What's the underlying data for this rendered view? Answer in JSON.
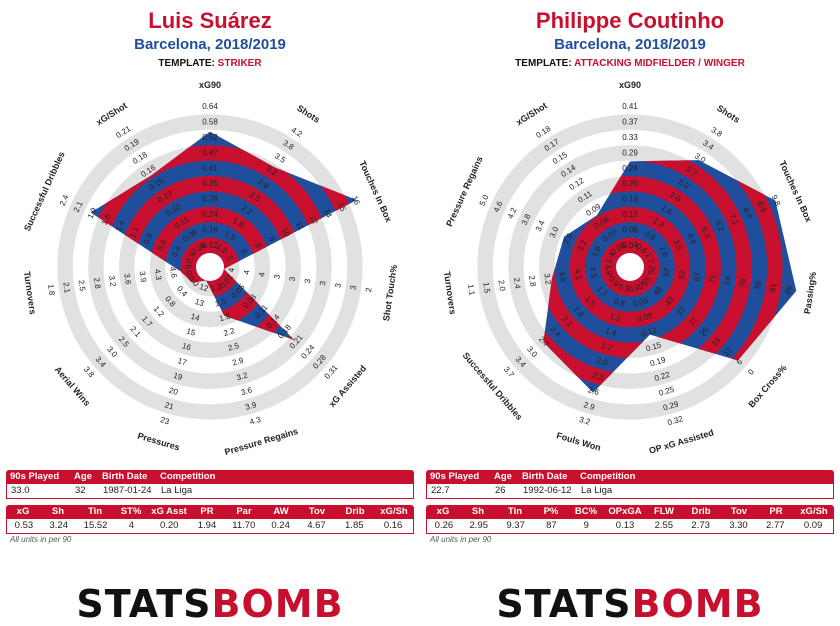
{
  "panels": [
    {
      "name": "Luis Suárez",
      "team": "Barcelona, 2018/2019",
      "template_label": "TEMPLATE:",
      "template_value": "STRIKER",
      "info_headers": [
        "90s Played",
        "Age",
        "Birth Date",
        "Competition"
      ],
      "info_values": [
        "33.0",
        "32",
        "1987-01-24",
        "La Liga"
      ],
      "stat_headers": [
        "xG",
        "Sh",
        "Tin",
        "ST%",
        "xG Asst",
        "PR",
        "Par",
        "AW",
        "Tov",
        "Drib",
        "xG/Sh"
      ],
      "stat_values": [
        "0.53",
        "3.24",
        "15.52",
        "4",
        "0.20",
        "1.94",
        "11.70",
        "0.24",
        "4.67",
        "1.85",
        "0.16"
      ],
      "units_note": "All units in per 90"
    },
    {
      "name": "Philippe Coutinho",
      "team": "Barcelona, 2018/2019",
      "template_label": "TEMPLATE:",
      "template_value": "ATTACKING MIDFIELDER / WINGER",
      "info_headers": [
        "90s Played",
        "Age",
        "Birth Date",
        "Competition"
      ],
      "info_values": [
        "22.7",
        "26",
        "1992-06-12",
        "La Liga"
      ],
      "stat_headers": [
        "xG",
        "Sh",
        "Tin",
        "P%",
        "BC%",
        "OPxGA",
        "FLW",
        "Drib",
        "Tov",
        "PR",
        "xG/Sh"
      ],
      "stat_values": [
        "0.26",
        "2.95",
        "9.37",
        "87",
        "9",
        "0.13",
        "2.55",
        "2.73",
        "3.30",
        "2.77",
        "0.09"
      ],
      "units_note": "All units in per 90"
    }
  ],
  "logo": {
    "part1": "STATS",
    "part2": "BOMB"
  },
  "colors": {
    "red": "#c8102e",
    "blue": "#1f4e9c",
    "ring": "#e1e1e1"
  },
  "chart_data": [
    {
      "type": "radar",
      "title": "Luis Suárez",
      "axes": [
        "xG90",
        "Shots",
        "Touches In Box",
        "Shot Touch%",
        "xG Assisted",
        "Pressure Regains",
        "Pressures",
        "Aerial Wins",
        "Turnovers",
        "Successful Dribbles",
        "xG/Shot"
      ],
      "values": [
        0.53,
        3.24,
        15.52,
        4,
        0.2,
        1.94,
        11.7,
        0.24,
        4.67,
        1.85,
        0.16
      ],
      "outer": [
        0.64,
        4.2,
        16,
        2,
        0.31,
        4.3,
        23,
        3.8,
        1.8,
        2.4,
        0.21
      ],
      "ticks": [
        [
          "0.64",
          "0.58",
          "0.52",
          "0.47",
          "0.41",
          "0.35",
          "0.29",
          "0.24",
          "0.18",
          "0.12"
        ],
        [
          "4.2",
          "3.8",
          "3.5",
          "3.2",
          "2.8",
          "2.5",
          "2.2",
          "1.8",
          "1.5",
          "1.2"
        ],
        [
          "16",
          "15",
          "14",
          "12",
          "11",
          "10",
          "9",
          "8",
          "6",
          "5"
        ],
        [
          "2",
          "3",
          "3",
          "3",
          "3",
          "3",
          "3",
          "4",
          "4",
          "4"
        ],
        [
          "0.31",
          "0.28",
          "0.24",
          "0.21",
          "0.18",
          "0.14",
          "0.11",
          "0.08",
          "0.05",
          "0.01"
        ],
        [
          "4.3",
          "3.9",
          "3.6",
          "3.2",
          "2.9",
          "2.5",
          "2.2",
          "1.8",
          "1.5",
          "1.2"
        ],
        [
          "23",
          "21",
          "20",
          "19",
          "17",
          "16",
          "15",
          "14",
          "13",
          "12"
        ],
        [
          "3.8",
          "3.4",
          "3.0",
          "2.5",
          "2.1",
          "1.7",
          "1.2",
          "0.8",
          "0.4",
          "0.0"
        ],
        [
          "1.8",
          "2.1",
          "2.5",
          "2.8",
          "3.2",
          "3.6",
          "3.9",
          "4.3",
          "4.6",
          "5.0"
        ],
        [
          "2.4",
          "2.1",
          "1.9",
          "1.6",
          "1.4",
          "1.1",
          "0.9",
          "0.6",
          "0.4",
          "0.1"
        ],
        [
          "0.21",
          "0.19",
          "0.18",
          "0.16",
          "0.15",
          "0.13",
          "0.12",
          "0.11",
          "0.09",
          "0.08"
        ]
      ]
    },
    {
      "type": "radar",
      "title": "Philippe Coutinho",
      "axes": [
        "xG90",
        "Shots",
        "Touches In Box",
        "Passing%",
        "Box Cross%",
        "OP xG Assisted",
        "Fouls Won",
        "Successful Dribbles",
        "Turnovers",
        "Pressure Regains",
        "xG/Shot"
      ],
      "values": [
        0.26,
        2.95,
        9.37,
        87,
        9,
        0.13,
        2.55,
        2.73,
        3.3,
        2.77,
        0.09
      ],
      "outer": [
        0.41,
        3.8,
        9.8,
        85,
        0,
        0.32,
        3.2,
        3.7,
        1.1,
        5.0,
        0.18
      ],
      "ticks": [
        [
          "0.41",
          "0.37",
          "0.33",
          "0.29",
          "0.24",
          "0.20",
          "0.16",
          "0.12",
          "0.08",
          "0.04"
        ],
        [
          "3.8",
          "3.4",
          "3.0",
          "2.7",
          "2.3",
          "2.0",
          "1.6",
          "1.3",
          "0.9",
          "0.6"
        ],
        [
          "9.8",
          "8.9",
          "8.0",
          "7.1",
          "6.2",
          "5.3",
          "4.4",
          "3.5",
          "2.6",
          "1.7"
        ],
        [
          "85",
          "81",
          "78",
          "76",
          "74",
          "71",
          "67",
          "62",
          "57",
          "52"
        ],
        [
          "0",
          "6",
          "12",
          "18",
          "25",
          "31",
          "37",
          "43",
          "49",
          "55"
        ],
        [
          "0.32",
          "0.29",
          "0.25",
          "0.22",
          "0.19",
          "0.15",
          "0.12",
          "0.09",
          "0.05",
          "0.02"
        ],
        [
          "3.2",
          "2.9",
          "2.6",
          "2.3",
          "2.0",
          "1.7",
          "1.4",
          "1.1",
          "0.8",
          "0.5"
        ],
        [
          "3.7",
          "3.4",
          "3.0",
          "2.7",
          "2.4",
          "2.1",
          "1.8",
          "1.5",
          "1.2",
          "0.9"
        ],
        [
          "1.1",
          "1.5",
          "2.0",
          "2.4",
          "2.8",
          "3.2",
          "3.6",
          "4.1",
          "4.5",
          "4.9"
        ],
        [
          "5.0",
          "4.6",
          "4.2",
          "3.8",
          "3.4",
          "3.0",
          "2.6",
          "2.2",
          "1.8",
          "1.4"
        ],
        [
          "0.18",
          "0.17",
          "0.15",
          "0.14",
          "0.12",
          "0.11",
          "0.09",
          "0.08",
          "0.07",
          "0.05"
        ]
      ]
    }
  ]
}
